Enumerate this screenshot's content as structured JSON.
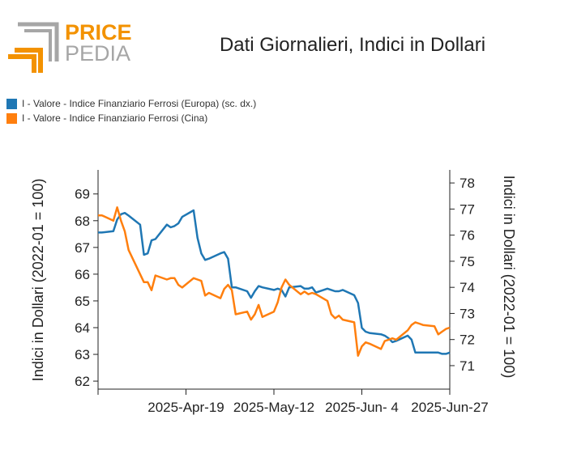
{
  "header": {
    "logo_word1": "PRICE",
    "logo_word2": "PEDIA",
    "title": "Dati Giornalieri, Indici in Dollari"
  },
  "colors": {
    "europa": "#1f77b4",
    "cina": "#ff7f0e",
    "logo_orange": "#f39200",
    "logo_grey": "#a6a6a6"
  },
  "chart_data": {
    "type": "line",
    "title": "Dati Giornalieri, Indici in Dollari",
    "ylabel_left": "Indici in Dollari (2022-01 = 100)",
    "ylabel_right": "Indici in Dollari (2022-01 = 100)",
    "x_ticks": [
      "2025-Apr-19",
      "2025-May-12",
      "2025-Jun- 4",
      "2025-Jun-27"
    ],
    "x_start": "2025-Mar-27",
    "x_end": "2025-Jun-27",
    "y_left_range": [
      61.7,
      69.9
    ],
    "y_left_ticks": [
      62,
      63,
      64,
      65,
      66,
      67,
      68,
      69
    ],
    "y_right_range": [
      70.1,
      78.5
    ],
    "y_right_ticks": [
      71,
      72,
      73,
      74,
      75,
      76,
      77,
      78
    ],
    "grid": false,
    "legend_position": "top-left",
    "series": [
      {
        "name": "I - Valore - Indice Finanziario Ferrosi (Europa) (sc. dx.)",
        "axis": "right",
        "color": "#1f77b4",
        "x": [
          "2025-03-27",
          "2025-03-28",
          "2025-03-31",
          "2025-04-01",
          "2025-04-02",
          "2025-04-03",
          "2025-04-04",
          "2025-04-07",
          "2025-04-08",
          "2025-04-09",
          "2025-04-10",
          "2025-04-11",
          "2025-04-14",
          "2025-04-15",
          "2025-04-16",
          "2025-04-17",
          "2025-04-18",
          "2025-04-21",
          "2025-04-22",
          "2025-04-23",
          "2025-04-24",
          "2025-04-25",
          "2025-04-28",
          "2025-04-29",
          "2025-04-30",
          "2025-05-01",
          "2025-05-02",
          "2025-05-05",
          "2025-05-06",
          "2025-05-07",
          "2025-05-08",
          "2025-05-09",
          "2025-05-12",
          "2025-05-13",
          "2025-05-14",
          "2025-05-15",
          "2025-05-16",
          "2025-05-19",
          "2025-05-20",
          "2025-05-21",
          "2025-05-22",
          "2025-05-23",
          "2025-05-26",
          "2025-05-27",
          "2025-05-28",
          "2025-05-29",
          "2025-05-30",
          "2025-06-02",
          "2025-06-03",
          "2025-06-04",
          "2025-06-05",
          "2025-06-06",
          "2025-06-09",
          "2025-06-10",
          "2025-06-11",
          "2025-06-12",
          "2025-06-13",
          "2025-06-16",
          "2025-06-17",
          "2025-06-18",
          "2025-06-19",
          "2025-06-20",
          "2025-06-23",
          "2025-06-24",
          "2025-06-25",
          "2025-06-26",
          "2025-06-27"
        ],
        "values": [
          76.1,
          76.1,
          76.15,
          76.6,
          76.8,
          76.85,
          76.75,
          76.4,
          75.25,
          75.3,
          75.8,
          75.85,
          76.4,
          76.3,
          76.35,
          76.45,
          76.7,
          76.95,
          75.9,
          75.3,
          75.05,
          75.1,
          75.3,
          75.35,
          75.1,
          74.0,
          74.0,
          73.85,
          73.6,
          73.85,
          74.05,
          74.0,
          73.9,
          73.95,
          73.9,
          73.65,
          74.0,
          74.05,
          73.95,
          73.95,
          74.0,
          73.8,
          73.95,
          73.9,
          73.85,
          73.85,
          73.9,
          73.7,
          73.4,
          72.45,
          72.3,
          72.25,
          72.2,
          72.15,
          72.05,
          71.9,
          71.95,
          72.15,
          72.0,
          71.5,
          71.5,
          71.5,
          71.5,
          71.5,
          71.45,
          71.45,
          71.5
        ]
      },
      {
        "name": "I - Valore - Indice Finanziario Ferrosi (Cina)",
        "axis": "left",
        "color": "#ff7f0e",
        "x": [
          "2025-03-27",
          "2025-03-28",
          "2025-03-31",
          "2025-04-01",
          "2025-04-02",
          "2025-04-03",
          "2025-04-04",
          "2025-04-07",
          "2025-04-08",
          "2025-04-09",
          "2025-04-10",
          "2025-04-11",
          "2025-04-14",
          "2025-04-15",
          "2025-04-16",
          "2025-04-17",
          "2025-04-18",
          "2025-04-21",
          "2025-04-22",
          "2025-04-23",
          "2025-04-24",
          "2025-04-25",
          "2025-04-28",
          "2025-04-29",
          "2025-04-30",
          "2025-05-01",
          "2025-05-02",
          "2025-05-05",
          "2025-05-06",
          "2025-05-07",
          "2025-05-08",
          "2025-05-09",
          "2025-05-12",
          "2025-05-13",
          "2025-05-14",
          "2025-05-15",
          "2025-05-16",
          "2025-05-19",
          "2025-05-20",
          "2025-05-21",
          "2025-05-22",
          "2025-05-23",
          "2025-05-26",
          "2025-05-27",
          "2025-05-28",
          "2025-05-29",
          "2025-05-30",
          "2025-06-02",
          "2025-06-03",
          "2025-06-04",
          "2025-06-05",
          "2025-06-06",
          "2025-06-09",
          "2025-06-10",
          "2025-06-11",
          "2025-06-12",
          "2025-06-13",
          "2025-06-16",
          "2025-06-17",
          "2025-06-18",
          "2025-06-19",
          "2025-06-20",
          "2025-06-23",
          "2025-06-24",
          "2025-06-25",
          "2025-06-26",
          "2025-06-27"
        ],
        "values": [
          68.2,
          68.2,
          68.0,
          68.5,
          68.0,
          67.6,
          66.9,
          66.0,
          65.7,
          65.7,
          65.4,
          65.95,
          65.8,
          65.85,
          65.85,
          65.6,
          65.5,
          65.85,
          65.8,
          65.75,
          65.2,
          65.3,
          65.1,
          65.45,
          65.6,
          65.4,
          64.5,
          64.6,
          64.3,
          64.5,
          64.85,
          64.4,
          64.6,
          64.95,
          65.5,
          65.8,
          65.6,
          65.25,
          65.35,
          65.25,
          65.3,
          65.25,
          65.0,
          64.5,
          64.35,
          64.45,
          64.3,
          64.2,
          62.95,
          63.3,
          63.45,
          63.4,
          63.2,
          63.5,
          63.55,
          63.6,
          63.55,
          63.9,
          64.1,
          64.2,
          64.15,
          64.1,
          64.05,
          63.75,
          63.85,
          63.95,
          64.0
        ]
      }
    ]
  }
}
